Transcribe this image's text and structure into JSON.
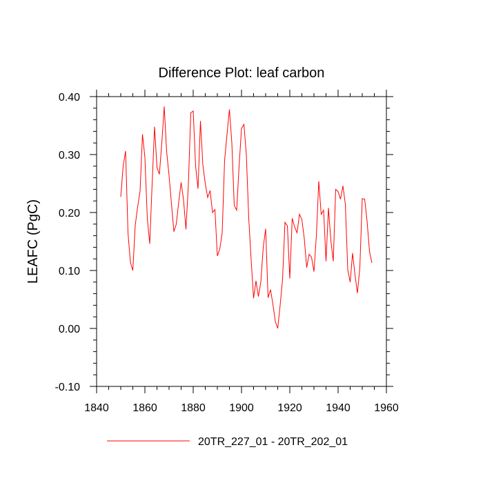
{
  "chart_data": {
    "type": "line",
    "title": "Difference Plot: leaf carbon",
    "xlabel": "",
    "ylabel": "LEAFC  (PgC)",
    "xlim": [
      1840,
      1960
    ],
    "ylim": [
      -0.1,
      0.4
    ],
    "xticks": [
      1840,
      1860,
      1880,
      1900,
      1920,
      1940,
      1960
    ],
    "xtick_labels": [
      "1840",
      "1860",
      "1880",
      "1900",
      "1920",
      "1940",
      "1960"
    ],
    "yticks": [
      -0.1,
      0.0,
      0.1,
      0.2,
      0.3,
      0.4
    ],
    "ytick_labels": [
      "-0.10",
      "0.00",
      "0.10",
      "0.20",
      "0.30",
      "0.40"
    ],
    "grid": false,
    "legend_position": "bottom-center",
    "series": [
      {
        "name": "20TR_227_01 - 20TR_202_01",
        "color": "#ff0000",
        "x": [
          1850,
          1851,
          1852,
          1853,
          1854,
          1855,
          1856,
          1857,
          1858,
          1859,
          1860,
          1861,
          1862,
          1863,
          1864,
          1865,
          1866,
          1867,
          1868,
          1869,
          1870,
          1871,
          1872,
          1873,
          1874,
          1875,
          1876,
          1877,
          1878,
          1879,
          1880,
          1881,
          1882,
          1883,
          1884,
          1885,
          1886,
          1887,
          1888,
          1889,
          1890,
          1891,
          1892,
          1893,
          1894,
          1895,
          1896,
          1897,
          1898,
          1899,
          1900,
          1901,
          1902,
          1903,
          1904,
          1905,
          1906,
          1907,
          1908,
          1909,
          1910,
          1911,
          1912,
          1913,
          1914,
          1915,
          1916,
          1917,
          1918,
          1919,
          1920,
          1921,
          1922,
          1923,
          1924,
          1925,
          1926,
          1927,
          1928,
          1929,
          1930,
          1931,
          1932,
          1933,
          1934,
          1935,
          1936,
          1937,
          1938,
          1939,
          1940,
          1941,
          1942,
          1943,
          1944,
          1945,
          1946,
          1947,
          1948,
          1949,
          1950,
          1951,
          1952,
          1953,
          1954
        ],
        "y": [
          0.227,
          0.28,
          0.306,
          0.165,
          0.114,
          0.1,
          0.178,
          0.21,
          0.237,
          0.335,
          0.295,
          0.19,
          0.146,
          0.25,
          0.348,
          0.278,
          0.266,
          0.32,
          0.383,
          0.305,
          0.264,
          0.215,
          0.167,
          0.18,
          0.218,
          0.252,
          0.222,
          0.171,
          0.248,
          0.372,
          0.375,
          0.28,
          0.241,
          0.358,
          0.282,
          0.25,
          0.226,
          0.238,
          0.2,
          0.205,
          0.125,
          0.137,
          0.165,
          0.29,
          0.335,
          0.378,
          0.32,
          0.212,
          0.204,
          0.28,
          0.345,
          0.352,
          0.3,
          0.19,
          0.118,
          0.052,
          0.082,
          0.055,
          0.08,
          0.14,
          0.172,
          0.053,
          0.067,
          0.042,
          0.012,
          0.0,
          0.04,
          0.085,
          0.183,
          0.177,
          0.086,
          0.19,
          0.175,
          0.165,
          0.197,
          0.188,
          0.155,
          0.105,
          0.128,
          0.123,
          0.098,
          0.16,
          0.254,
          0.197,
          0.204,
          0.116,
          0.208,
          0.152,
          0.116,
          0.24,
          0.236,
          0.223,
          0.246,
          0.214,
          0.101,
          0.08,
          0.13,
          0.092,
          0.061,
          0.105,
          0.224,
          0.223,
          0.185,
          0.133,
          0.113
        ]
      }
    ]
  }
}
